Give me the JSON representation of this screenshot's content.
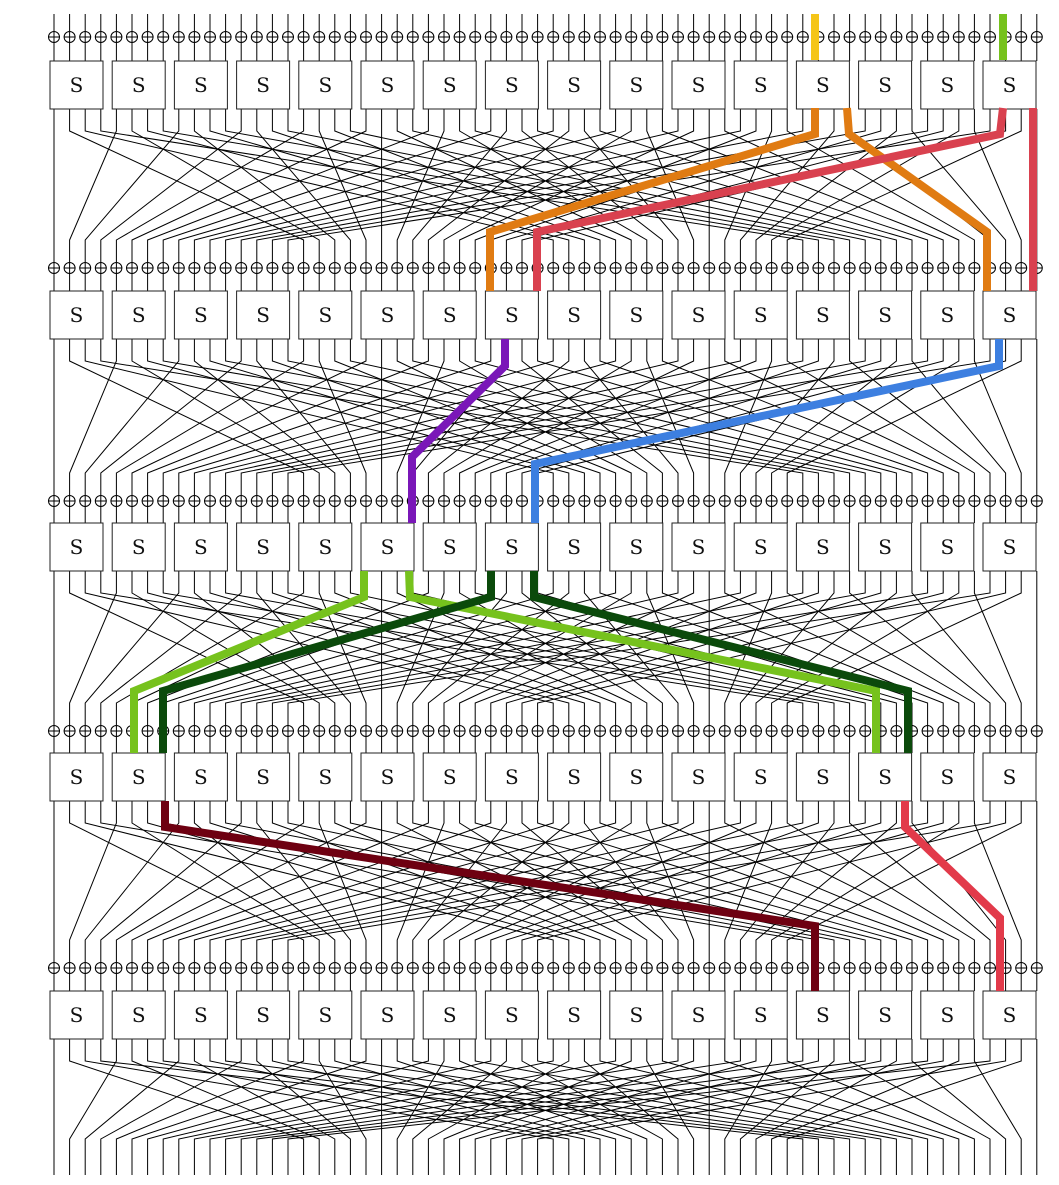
{
  "diagram": {
    "rounds": 5,
    "sboxes_per_round": 16,
    "bits_per_sbox": 4,
    "sbox_label": "S",
    "xor_symbol": "⊕",
    "wire_color": "#000000",
    "trail_colors": {
      "yellow": "#f5c518",
      "lime": "#76c21d",
      "orange": "#e07b12",
      "pink": "#d9414f",
      "purple": "#7a17b8",
      "blue": "#3d7fe0",
      "dark_green": "#0b4a0b",
      "maroon": "#6e0011",
      "red": "#e23a4a"
    },
    "active_sboxes": [
      {
        "round": 1,
        "sboxes": [
          13,
          16
        ]
      },
      {
        "round": 2,
        "sboxes": [
          8,
          16
        ]
      },
      {
        "round": 3,
        "sboxes": [
          6,
          8
        ]
      },
      {
        "round": 4,
        "sboxes": [
          2,
          14
        ]
      },
      {
        "round": 5,
        "sboxes": [
          13,
          16
        ]
      }
    ]
  }
}
